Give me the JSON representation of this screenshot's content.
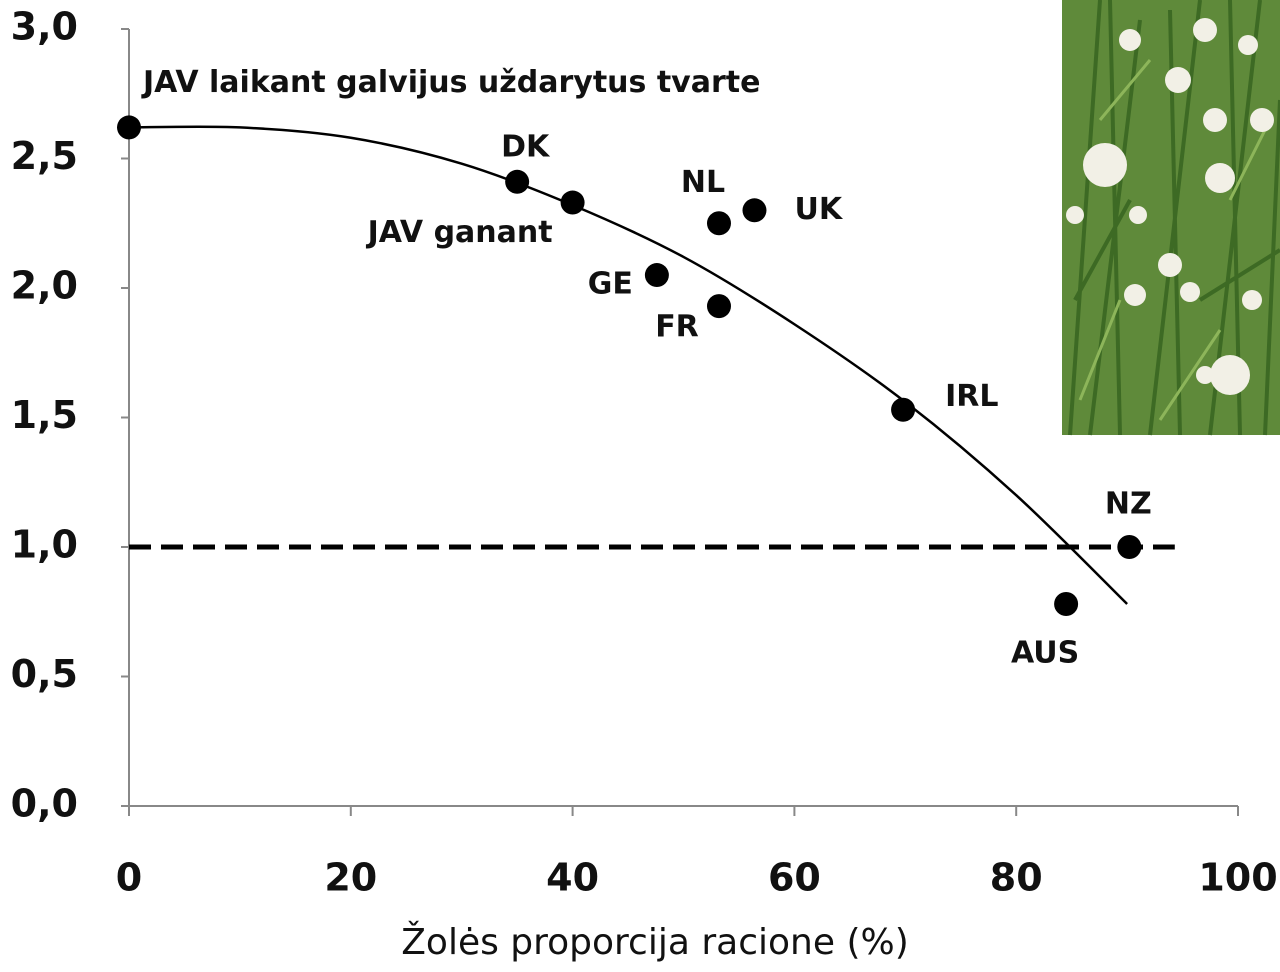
{
  "chart_data": {
    "type": "scatter",
    "x_label": "Žolės proporcija racione (%)",
    "xlim": [
      0,
      100
    ],
    "xticks": [
      0,
      20,
      40,
      60,
      80,
      100
    ],
    "ylim": [
      0,
      3
    ],
    "yticks": [
      {
        "value": 0,
        "label": "0,0"
      },
      {
        "value": 0.5,
        "label": "0,5"
      },
      {
        "value": 1,
        "label": "1,0"
      },
      {
        "value": 1.5,
        "label": "1,5"
      },
      {
        "value": 2,
        "label": "2,0"
      },
      {
        "value": 2.5,
        "label": "2,5"
      },
      {
        "value": 3,
        "label": "3,0"
      }
    ],
    "color": "#000000",
    "points": [
      {
        "label": "JAV laikant galvijus uždarytus tvarte",
        "x": 0,
        "y": 2.62
      },
      {
        "label": "DK",
        "x": 35,
        "y": 2.41
      },
      {
        "label": "JAV ganant",
        "x": 40,
        "y": 2.33
      },
      {
        "label": "GE",
        "x": 47.6,
        "y": 2.05
      },
      {
        "label": "NL",
        "x": 53.2,
        "y": 2.25
      },
      {
        "label": "UK",
        "x": 56.4,
        "y": 2.3
      },
      {
        "label": "FR",
        "x": 53.2,
        "y": 1.93
      },
      {
        "label": "IRL",
        "x": 69.8,
        "y": 1.53
      },
      {
        "label": "AUS",
        "x": 84.5,
        "y": 0.78
      },
      {
        "label": "NZ",
        "x": 90.2,
        "y": 1.0
      }
    ],
    "trend": {
      "x": [
        0,
        10,
        20,
        30,
        40,
        50,
        60,
        70,
        80,
        90
      ],
      "y": [
        2.62,
        2.62,
        2.58,
        2.48,
        2.32,
        2.12,
        1.86,
        1.56,
        1.2,
        0.78
      ]
    },
    "reference_line": {
      "y": 1.0,
      "x": [
        0,
        94.3
      ]
    }
  }
}
